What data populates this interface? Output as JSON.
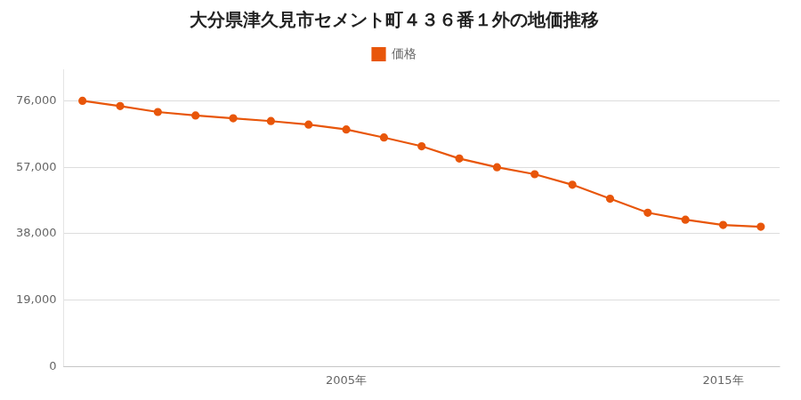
{
  "chart_data": {
    "type": "line",
    "title": "大分県津久見市セメント町４３６番１外の地価推移",
    "x": [
      1998,
      1999,
      2000,
      2001,
      2002,
      2003,
      2004,
      2005,
      2006,
      2007,
      2008,
      2009,
      2010,
      2011,
      2012,
      2013,
      2014,
      2015,
      2016
    ],
    "series": [
      {
        "name": "価格",
        "color": "#E8560A",
        "marker": "circle",
        "line_style": "solid",
        "values": [
          76000,
          74500,
          72800,
          71800,
          71000,
          70200,
          69200,
          67800,
          65500,
          63000,
          59500,
          57000,
          55000,
          52000,
          48000,
          44000,
          42000,
          40500,
          40000
        ]
      }
    ],
    "xlim": [
      1997.5,
      2016.5
    ],
    "xticks": [
      {
        "value": 2005,
        "label": "2005年"
      },
      {
        "value": 2015,
        "label": "2015年"
      }
    ],
    "ylim": [
      0,
      85000
    ],
    "yticks": [
      0,
      {
        "value": 19000,
        "label": "19,000"
      },
      {
        "value": 38000,
        "label": "38,000"
      },
      {
        "value": 57000,
        "label": "57,000"
      },
      {
        "value": 76000,
        "label": "76,000"
      }
    ],
    "grid": "y",
    "legend": "top"
  }
}
